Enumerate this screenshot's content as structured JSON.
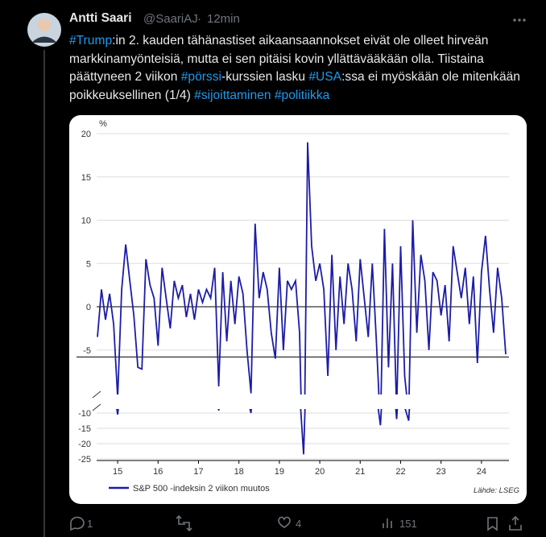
{
  "tweet": {
    "author": "Antti Saari",
    "handle": "@SaariAJ",
    "separator": "·",
    "time": "12min",
    "body": [
      {
        "text": "#Trump",
        "tag": true
      },
      {
        "text": ":in 2. kauden tähänastiset aikaansaannokset eivät ole olleet hirveän markkinamyönteisiä, mutta ei sen pitäisi kovin yllättävääkään olla. Tiistaina päättyneen 2 viikon ",
        "tag": false
      },
      {
        "text": "#pörssi",
        "tag": true
      },
      {
        "text": "-kurssien lasku ",
        "tag": false
      },
      {
        "text": "#USA",
        "tag": true
      },
      {
        "text": ":ssa ei myöskään ole mitenkään poikkeuksellinen (1/4) ",
        "tag": false
      },
      {
        "text": "#sijoittaminen ",
        "tag": true
      },
      {
        "text": "#politiikka",
        "tag": true
      }
    ],
    "stats": {
      "replies": 1,
      "likes": 4,
      "views": 151
    }
  },
  "chart_data": {
    "type": "line",
    "y_unit": "%",
    "source": "Lähde: LSEG",
    "grid": true,
    "x": [
      15.0,
      15.1,
      15.2,
      15.3,
      15.4,
      15.5,
      15.6,
      15.7,
      15.8,
      15.9,
      16.0,
      16.1,
      16.2,
      16.3,
      16.4,
      16.5,
      16.6,
      16.7,
      16.8,
      16.9,
      17.0,
      17.1,
      17.2,
      17.3,
      17.4,
      17.5,
      17.6,
      17.7,
      17.8,
      17.9,
      18.0,
      18.1,
      18.2,
      18.3,
      18.4,
      18.5,
      18.6,
      18.7,
      18.8,
      18.9,
      19.0,
      19.1,
      19.2,
      19.3,
      19.4,
      19.5,
      19.6,
      19.7,
      19.8,
      19.9,
      20.0,
      20.1,
      20.2,
      20.3,
      20.4,
      20.5,
      20.6,
      20.7,
      20.8,
      20.9,
      21.0,
      21.1,
      21.2,
      21.3,
      21.4,
      21.5,
      21.6,
      21.7,
      21.8,
      21.9,
      22.0,
      22.1,
      22.2,
      22.3,
      22.4,
      22.5,
      22.6,
      22.7,
      22.8,
      22.9,
      23.0,
      23.1,
      23.2,
      23.3,
      23.4,
      23.5,
      23.6,
      23.7,
      23.8,
      23.9,
      24.0,
      24.1,
      24.2,
      24.3,
      24.4,
      24.5,
      24.6,
      24.7,
      24.8,
      24.9,
      25.0,
      25.1
    ],
    "series": [
      {
        "name": "S&P 500 -indeksin 2 viikon muutos",
        "color": "#1c1ca8",
        "values": [
          -3.5,
          2,
          -1.5,
          1.5,
          -2,
          -10.5,
          2,
          7.2,
          3,
          -1,
          -7,
          -7.2,
          5.5,
          2.5,
          1,
          -4.5,
          4.5,
          1,
          -2.5,
          3,
          1,
          2.5,
          -1.2,
          1.5,
          -1.5,
          2,
          0.5,
          2,
          1,
          4.5,
          -9.2,
          4,
          -4,
          3,
          -2,
          3.5,
          1.5,
          -5,
          -10,
          9.6,
          1,
          4,
          2,
          -3,
          -6,
          4.5,
          -5,
          3,
          2,
          3,
          -3,
          -23.5,
          19,
          7,
          3,
          5,
          2,
          -8,
          6,
          -5,
          3.5,
          -2,
          5,
          2,
          -4,
          5.5,
          1,
          -3.5,
          5,
          -4,
          -14,
          9,
          -7,
          5,
          -12,
          7,
          -8,
          -12.5,
          10,
          -3,
          6,
          3,
          -5,
          4,
          3,
          -1,
          2.5,
          -4,
          7,
          4,
          1,
          4.5,
          -2,
          3.5,
          -6.5,
          4,
          8.2,
          2,
          -3,
          4.5,
          1,
          -5.5
        ]
      }
    ],
    "xlim": [
      14.98,
      25.18
    ],
    "xticks": [
      {
        "value": 15.5,
        "label": "15"
      },
      {
        "value": 16.5,
        "label": "16"
      },
      {
        "value": 17.5,
        "label": "17"
      },
      {
        "value": 18.5,
        "label": "18"
      },
      {
        "value": 19.5,
        "label": "19"
      },
      {
        "value": 20.5,
        "label": "20"
      },
      {
        "value": 21.5,
        "label": "21"
      },
      {
        "value": 22.5,
        "label": "22"
      },
      {
        "value": 23.5,
        "label": "23"
      },
      {
        "value": 24.5,
        "label": "24"
      }
    ],
    "ylim": [
      -10,
      20
    ],
    "yticks": [
      -5,
      0,
      5,
      10,
      15,
      20
    ],
    "lower_ylim": [
      -25,
      -10
    ],
    "lower_yticks": [
      -10,
      -15,
      -20,
      -25
    ],
    "reference_line": -5.8
  }
}
